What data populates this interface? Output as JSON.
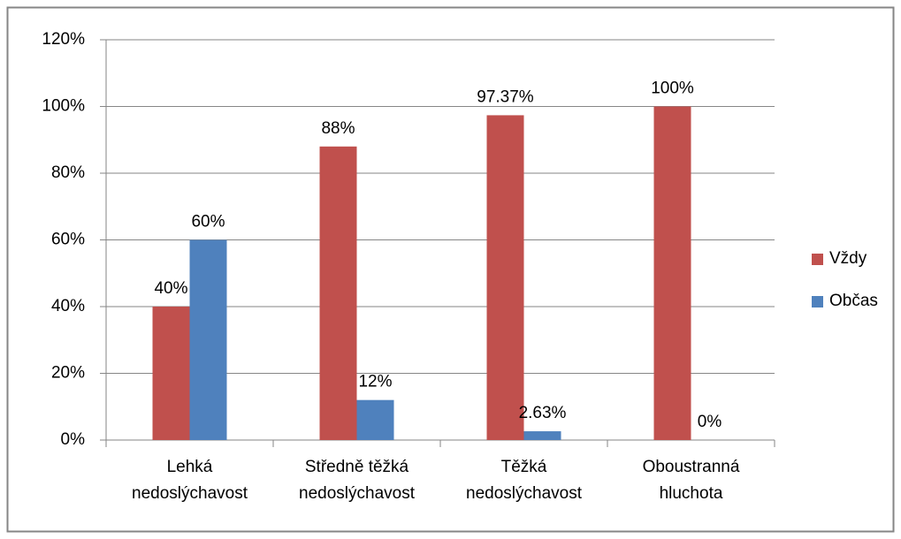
{
  "chart_data": {
    "type": "bar",
    "categories": [
      "Lehká nedoslýchavost",
      "Středně těžká nedoslýchavost",
      "Těžká nedoslýchavost",
      "Oboustranná hluchota"
    ],
    "series": [
      {
        "name": "Vždy",
        "color": "#c0504d",
        "values": [
          40,
          88,
          97.37,
          100
        ],
        "value_labels": [
          "40%",
          "88%",
          "97.37%",
          "100%"
        ]
      },
      {
        "name": "Občas",
        "color": "#4f81bd",
        "values": [
          60,
          12,
          2.63,
          0
        ],
        "value_labels": [
          "60%",
          "12%",
          "2.63%",
          "0%"
        ]
      }
    ],
    "ylim": [
      0,
      120
    ],
    "yticks": [
      {
        "value": 0,
        "label": "0%"
      },
      {
        "value": 20,
        "label": "20%"
      },
      {
        "value": 40,
        "label": "40%"
      },
      {
        "value": 60,
        "label": "60%"
      },
      {
        "value": 80,
        "label": "80%"
      },
      {
        "value": 100,
        "label": "100%"
      },
      {
        "value": 120,
        "label": "120%"
      }
    ],
    "grid": true,
    "legend": "right"
  }
}
